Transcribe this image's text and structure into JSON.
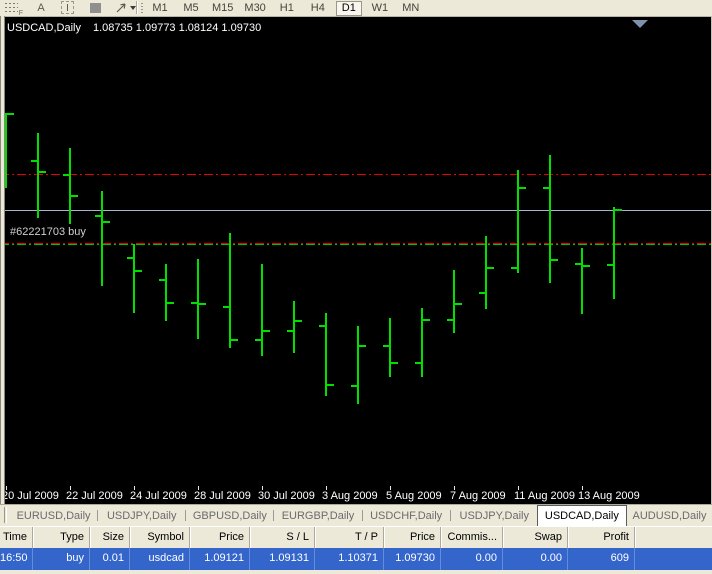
{
  "toolbar": {
    "tools": [
      {
        "name": "fibonacci",
        "icon": "fibonacci-icon"
      },
      {
        "name": "text",
        "icon": "text-icon"
      },
      {
        "name": "text-label",
        "icon": "text-label-icon"
      },
      {
        "name": "shapes",
        "icon": "shapes-icon"
      },
      {
        "name": "arrows",
        "icon": "arrows-icon"
      }
    ],
    "timeframes": [
      {
        "label": "M1",
        "active": false
      },
      {
        "label": "M5",
        "active": false
      },
      {
        "label": "M15",
        "active": false
      },
      {
        "label": "M30",
        "active": false
      },
      {
        "label": "H1",
        "active": false
      },
      {
        "label": "H4",
        "active": false
      },
      {
        "label": "D1",
        "active": true
      },
      {
        "label": "W1",
        "active": false
      },
      {
        "label": "MN",
        "active": false
      }
    ]
  },
  "chart": {
    "title": "USDCAD,Daily",
    "quote": "1.08735 1.09773 1.08124 1.09730",
    "order_label": "#62221703 buy"
  },
  "chart_data": {
    "type": "ohlc-bar",
    "symbol": "USDCAD",
    "timeframe": "Daily",
    "title": "USDCAD,Daily  1.08735 1.09773 1.08124 1.09730",
    "ylim": [
      1.0476,
      1.1277
    ],
    "grid": false,
    "bars": [
      {
        "date": "20 Jul 2009",
        "o": 1.106,
        "h": 1.1147,
        "l": 1.1012,
        "c": 1.1145
      },
      {
        "date": "21 Jul 2009",
        "o": 1.106,
        "h": 1.1111,
        "l": 1.0958,
        "c": 1.1041
      },
      {
        "date": "22 Jul 2009",
        "o": 1.1035,
        "h": 1.1084,
        "l": 1.0947,
        "c": 1.0998
      },
      {
        "date": "23 Jul 2009",
        "o": 1.0962,
        "h": 1.1007,
        "l": 1.0836,
        "c": 1.0951
      },
      {
        "date": "24 Jul 2009",
        "o": 1.0886,
        "h": 1.0911,
        "l": 1.0787,
        "c": 1.0863
      },
      {
        "date": "27 Jul 2009",
        "o": 1.0846,
        "h": 1.0875,
        "l": 1.0773,
        "c": 1.0805
      },
      {
        "date": "28 Jul 2009",
        "o": 1.0805,
        "h": 1.0884,
        "l": 1.074,
        "c": 1.0803
      },
      {
        "date": "29 Jul 2009",
        "o": 1.0798,
        "h": 1.0931,
        "l": 1.0724,
        "c": 1.0738
      },
      {
        "date": "30 Jul 2009",
        "o": 1.0738,
        "h": 1.0876,
        "l": 1.071,
        "c": 1.0755
      },
      {
        "date": "31 Jul 2009",
        "o": 1.0755,
        "h": 1.0809,
        "l": 1.0715,
        "c": 1.0773
      },
      {
        "date": "3 Aug 2009",
        "o": 1.0764,
        "h": 1.0787,
        "l": 1.0638,
        "c": 1.0657
      },
      {
        "date": "4 Aug 2009",
        "o": 1.0656,
        "h": 1.0764,
        "l": 1.0623,
        "c": 1.0728
      },
      {
        "date": "5 Aug 2009",
        "o": 1.0728,
        "h": 1.0778,
        "l": 1.0672,
        "c": 1.0697
      },
      {
        "date": "6 Aug 2009",
        "o": 1.0697,
        "h": 1.0796,
        "l": 1.0672,
        "c": 1.0774
      },
      {
        "date": "7 Aug 2009",
        "o": 1.0774,
        "h": 1.0864,
        "l": 1.0751,
        "c": 1.0803
      },
      {
        "date": "10 Aug 2009",
        "o": 1.0823,
        "h": 1.0926,
        "l": 1.0794,
        "c": 1.0868
      },
      {
        "date": "11 Aug 2009",
        "o": 1.0868,
        "h": 1.1044,
        "l": 1.0859,
        "c": 1.1012
      },
      {
        "date": "12 Aug 2009",
        "o": 1.1012,
        "h": 1.1071,
        "l": 1.0841,
        "c": 1.0882
      },
      {
        "date": "13 Aug 2009",
        "o": 1.0875,
        "h": 1.0904,
        "l": 1.0785,
        "c": 1.0872
      },
      {
        "date": "14 Aug 2009",
        "o": 1.08735,
        "h": 1.09773,
        "l": 1.08124,
        "c": 1.0973
      }
    ],
    "x_tick_labels": [
      "20 Jul 2009",
      "22 Jul 2009",
      "24 Jul 2009",
      "28 Jul 2009",
      "30 Jul 2009",
      "3 Aug 2009",
      "5 Aug 2009",
      "7 Aug 2009",
      "11 Aug 2009",
      "13 Aug 2009"
    ],
    "lines": [
      {
        "name": "tp",
        "price": 1.10371,
        "color": "#E60000",
        "style": "dash-dot"
      },
      {
        "name": "sl",
        "price": 1.09131,
        "color": "#E60000",
        "style": "dash-dot"
      },
      {
        "name": "order-open",
        "price": 1.09121,
        "color": "#00C000",
        "style": "dash-dot"
      },
      {
        "name": "bid",
        "price": 1.0973,
        "color": "#A9B2CC",
        "style": "solid"
      }
    ]
  },
  "tabs": [
    {
      "label": "EURUSD,Daily",
      "active": false
    },
    {
      "label": "USDJPY,Daily",
      "active": false
    },
    {
      "label": "GBPUSD,Daily",
      "active": false
    },
    {
      "label": "EURGBP,Daily",
      "active": false
    },
    {
      "label": "USDCHF,Daily",
      "active": false
    },
    {
      "label": "USDJPY,Daily",
      "active": false
    },
    {
      "label": "USDCAD,Daily",
      "active": true
    },
    {
      "label": "AUDUSD,Daily",
      "active": false
    }
  ],
  "terminal": {
    "columns": [
      "Time",
      "Type",
      "Size",
      "Symbol",
      "Price",
      "S / L",
      "T / P",
      "Price",
      "Commis...",
      "Swap",
      "Profit"
    ],
    "rows": [
      [
        "16:50",
        "buy",
        "0.01",
        "usdcad",
        "1.09121",
        "1.09131",
        "1.10371",
        "1.09730",
        "0.00",
        "0.00",
        "609"
      ]
    ]
  },
  "colors": {
    "bar_green": "#00E000",
    "line_red": "#E60000",
    "line_green": "#00C000",
    "bid_line": "#A9B2CC",
    "selected_row": "#3465CB",
    "chart_bg": "#000000",
    "panel_bg": "#ECE9D8"
  }
}
